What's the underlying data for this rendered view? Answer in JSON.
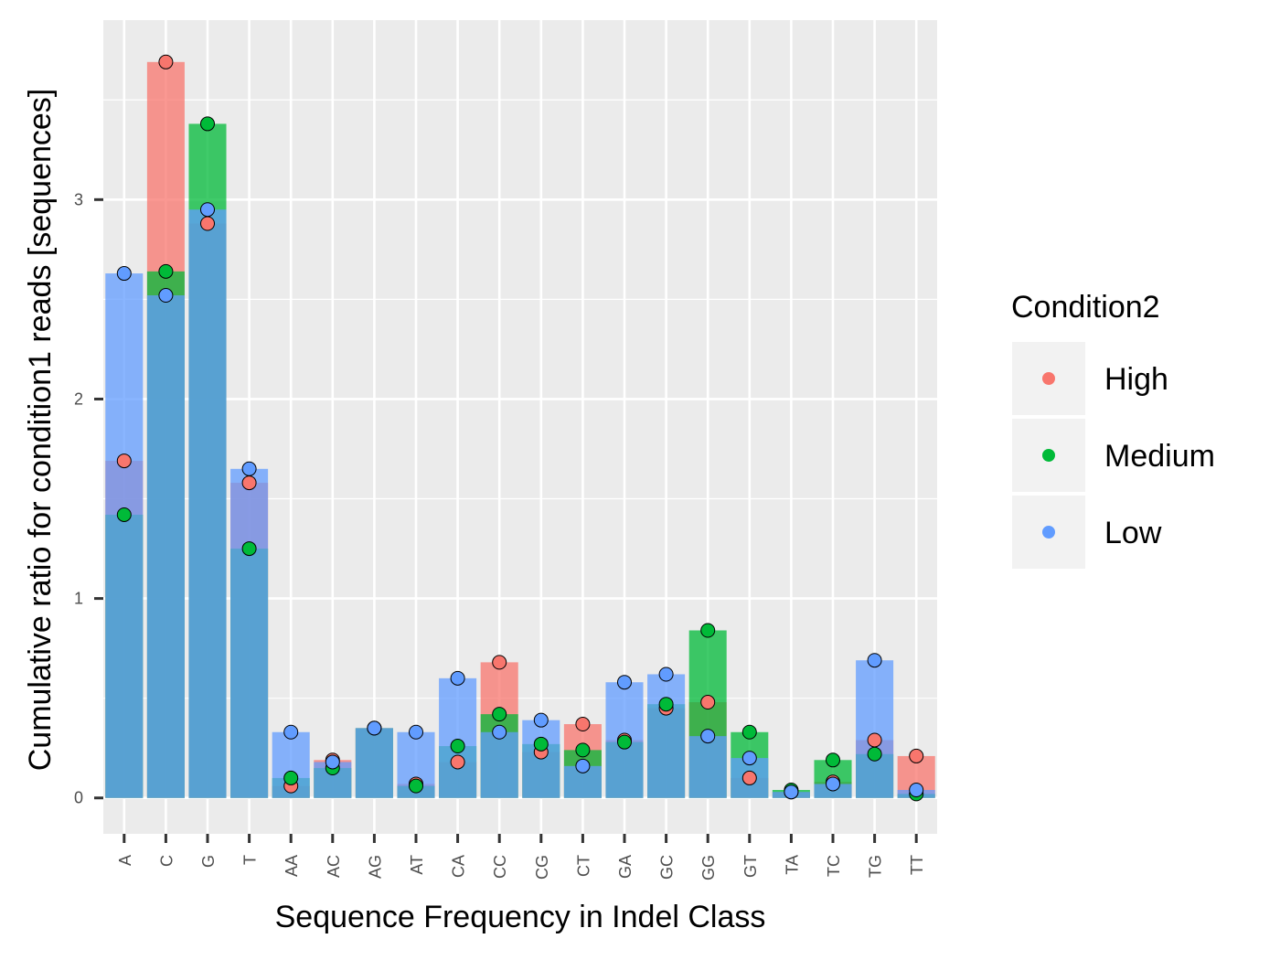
{
  "chart_data": {
    "type": "bar",
    "xlabel": "Sequence Frequency in Indel Class",
    "ylabel": "Cumulative ratio for condition1 reads [sequences]",
    "ylim": [
      -0.18,
      3.9
    ],
    "yticks": [
      0,
      1,
      2,
      3
    ],
    "grid": true,
    "legend": {
      "title": "Condition2",
      "position": "right"
    },
    "categories": [
      "A",
      "C",
      "G",
      "T",
      "AA",
      "AC",
      "AG",
      "AT",
      "CA",
      "CC",
      "CG",
      "CT",
      "GA",
      "GC",
      "GG",
      "GT",
      "TA",
      "TC",
      "TG",
      "TT"
    ],
    "series": [
      {
        "name": "High",
        "color": "#F8766D",
        "values": [
          1.69,
          3.69,
          2.88,
          1.58,
          0.06,
          0.19,
          0.35,
          0.07,
          0.18,
          0.68,
          0.23,
          0.37,
          0.29,
          0.45,
          0.48,
          0.1,
          0.03,
          0.08,
          0.29,
          0.21
        ]
      },
      {
        "name": "Medium",
        "color": "#00BA38",
        "values": [
          1.42,
          2.64,
          3.38,
          1.25,
          0.1,
          0.15,
          0.35,
          0.06,
          0.26,
          0.42,
          0.27,
          0.24,
          0.28,
          0.47,
          0.84,
          0.33,
          0.04,
          0.19,
          0.22,
          0.02
        ]
      },
      {
        "name": "Low",
        "color": "#619CFF",
        "values": [
          2.63,
          2.52,
          2.95,
          1.65,
          0.33,
          0.18,
          0.35,
          0.33,
          0.6,
          0.33,
          0.39,
          0.16,
          0.58,
          0.62,
          0.31,
          0.2,
          0.03,
          0.07,
          0.69,
          0.04
        ]
      }
    ]
  }
}
